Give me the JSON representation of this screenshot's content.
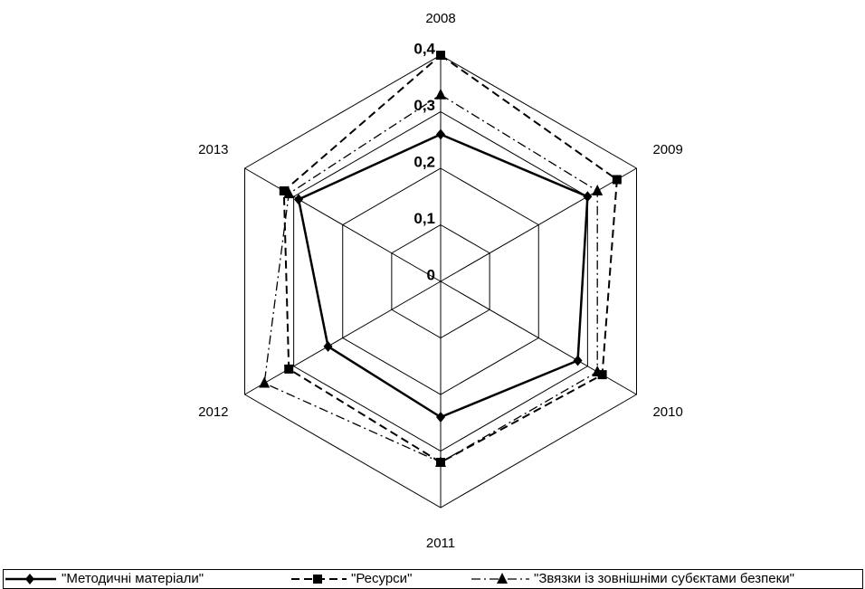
{
  "chart_data": {
    "type": "radar",
    "categories": [
      "2008",
      "2009",
      "2010",
      "2011",
      "2012",
      "2013"
    ],
    "rlim": [
      0,
      0.4
    ],
    "rticks": [
      0,
      {
        "value": 0.1,
        "label": "0,1"
      },
      {
        "value": 0.2,
        "label": "0,2"
      },
      {
        "value": 0.3,
        "label": "0,3"
      },
      {
        "value": 0.4,
        "label": "0,4"
      }
    ],
    "grid": true,
    "legend": "bottom",
    "series": [
      {
        "name": "\"Методичні матеріали\"",
        "color": "#000000",
        "line_style": "solid",
        "marker": "diamond",
        "values": [
          0.26,
          0.3,
          0.28,
          0.24,
          0.23,
          0.29
        ]
      },
      {
        "name": "\"Ресурси\"",
        "color": "#000000",
        "line_style": "dashed",
        "marker": "square",
        "values": [
          0.4,
          0.36,
          0.33,
          0.32,
          0.31,
          0.32
        ]
      },
      {
        "name": "\"Звязки із зовнішніми субєктами безпеки\"",
        "color": "#000000",
        "line_style": "dashdot",
        "marker": "triangle",
        "values": [
          0.33,
          0.32,
          0.32,
          0.32,
          0.36,
          0.31
        ]
      }
    ]
  }
}
